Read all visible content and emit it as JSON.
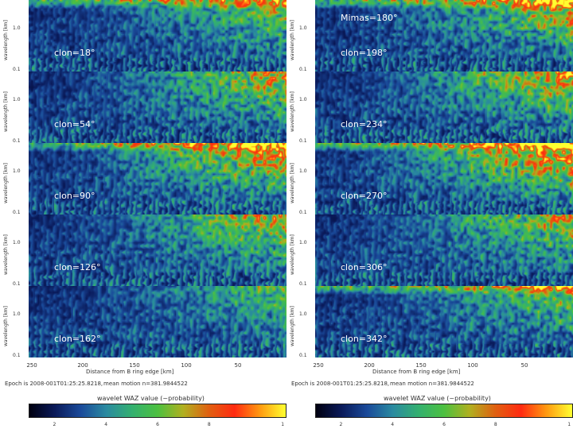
{
  "figure": {
    "colorbar_colors": [
      "#000010",
      "#0a1a5a",
      "#1a4a9a",
      "#2a8aa0",
      "#33b070",
      "#4cc040",
      "#b0b020",
      "#e06010",
      "#ff2a10",
      "#ff9a10",
      "#ffff30"
    ],
    "y_ticks": [
      "1.0",
      "0.1"
    ],
    "y_axis_title": "wavelength [km]",
    "x_ticks": [
      "250",
      "200",
      "150",
      "100",
      "50"
    ],
    "x_axis_title": "Distance from B ring edge [km]",
    "epoch_text": "Epoch is 2008-001T01:25:25.8218,",
    "mean_motion_text": "mean motion n=381.9844522",
    "colorbar_title": "wavelet WAZ value (~probability)",
    "colorbar_ticks": [
      "2",
      "4",
      "6",
      "8",
      "1"
    ]
  },
  "chart_data": [
    {
      "type": "heatmap",
      "xlabel": "Distance from B ring edge [km]",
      "ylabel": "wavelength [km]",
      "x_tick_labels": [
        "250",
        "200",
        "150",
        "100",
        "50"
      ],
      "y_tick_labels": [
        "1.0",
        "0.1"
      ],
      "colorbar_label": "wavelet WAZ value (~probability)",
      "panels": [
        {
          "label": "clon=18°",
          "activity": 0.45,
          "seed": 11,
          "top_strip": true
        },
        {
          "label": "clon=54°",
          "activity": 0.55,
          "seed": 23,
          "top_strip": false
        },
        {
          "label": "clon=90°",
          "activity": 0.75,
          "seed": 37,
          "top_strip": true
        },
        {
          "label": "clon=126°",
          "activity": 0.55,
          "seed": 41,
          "top_strip": false
        },
        {
          "label": "clon=162°",
          "activity": 0.35,
          "seed": 53,
          "top_strip": false
        }
      ]
    },
    {
      "type": "heatmap",
      "xlabel": "Distance from B ring edge [km]",
      "ylabel": "wavelength [km]",
      "x_tick_labels": [
        "250",
        "200",
        "150",
        "100",
        "50"
      ],
      "y_tick_labels": [
        "1.0",
        "0.1"
      ],
      "colorbar_label": "wavelet WAZ value (~probability)",
      "panels": [
        {
          "label": "clon=198°",
          "extra": "Mimas=180°",
          "activity": 0.6,
          "seed": 67,
          "top_strip": true
        },
        {
          "label": "clon=234°",
          "activity": 0.6,
          "seed": 71,
          "top_strip": false
        },
        {
          "label": "clon=270°",
          "activity": 0.85,
          "seed": 83,
          "top_strip": true
        },
        {
          "label": "clon=306°",
          "activity": 0.5,
          "seed": 97,
          "top_strip": false
        },
        {
          "label": "clon=342°",
          "activity": 0.45,
          "seed": 101,
          "top_strip": true
        }
      ]
    }
  ]
}
